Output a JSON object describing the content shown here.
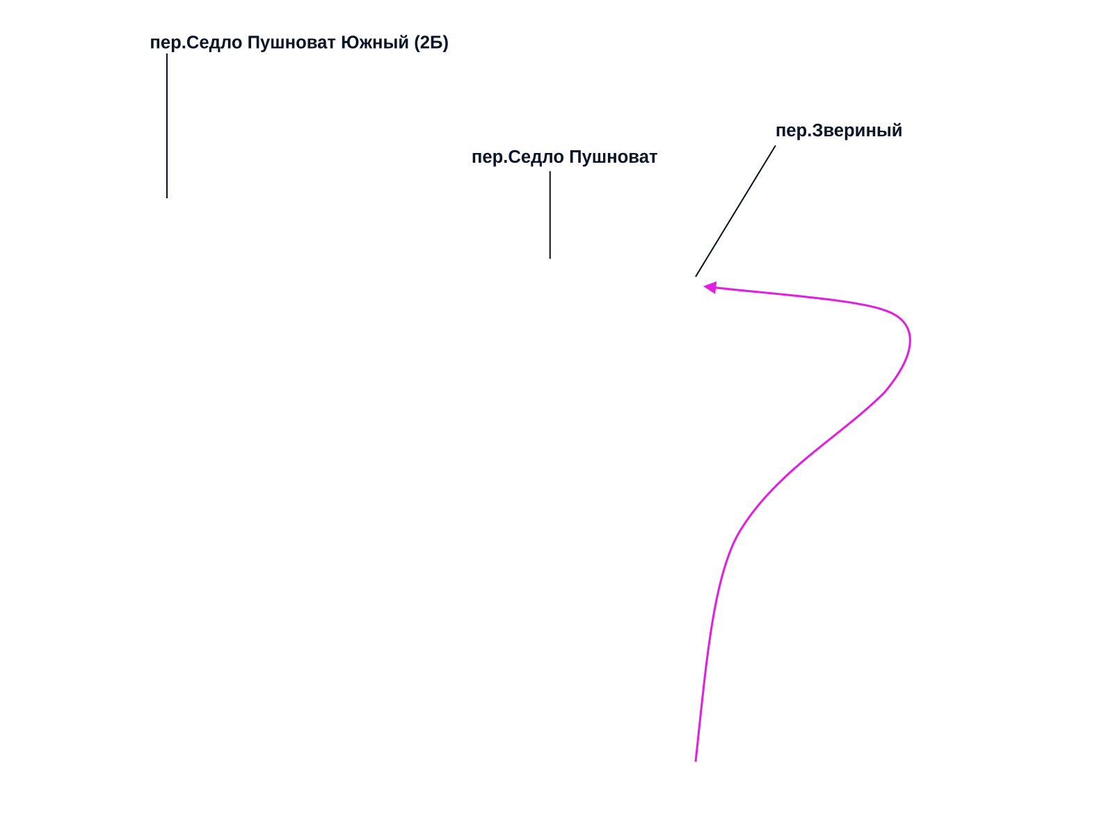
{
  "labels": [
    {
      "text": "пер.Седло Пушноват Южный (2Б)"
    },
    {
      "text": "пер.Седло Пушноват"
    },
    {
      "text": "пер.Звериный"
    }
  ]
}
